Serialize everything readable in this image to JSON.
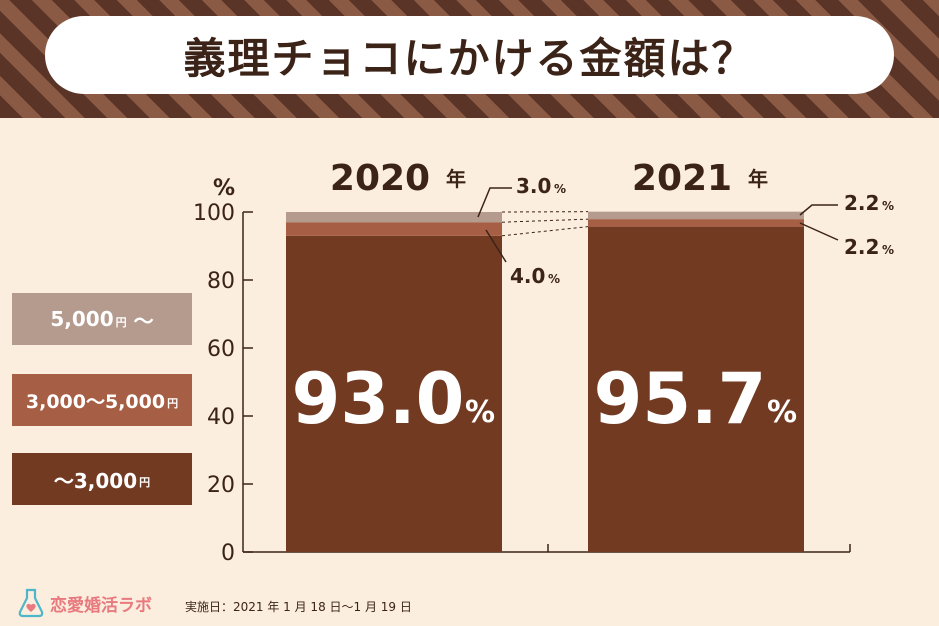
{
  "title": "義理チョコにかける金額は？",
  "legend": [
    {
      "label": "5,000",
      "unit": "円",
      "suffix": " 〜",
      "color": "#b59a8e"
    },
    {
      "label": "3,000〜5,000",
      "unit": "円",
      "suffix": "",
      "color": "#a65e44"
    },
    {
      "label": "〜3,000",
      "unit": "円",
      "suffix": "",
      "color": "#733a22"
    }
  ],
  "chart_data": {
    "type": "bar",
    "stacked": true,
    "ylabel": "%",
    "ylim": [
      0,
      100
    ],
    "yticks": [
      0,
      20,
      40,
      60,
      80,
      100
    ],
    "categories": [
      "2020",
      "2021"
    ],
    "category_suffix": "年",
    "series": [
      {
        "name": "〜3,000円",
        "values": [
          93.0,
          95.7
        ],
        "color": "#733a22"
      },
      {
        "name": "3,000〜5,000円",
        "values": [
          4.0,
          2.2
        ],
        "color": "#a65e44"
      },
      {
        "name": "5,000円〜",
        "values": [
          3.0,
          2.2
        ],
        "color": "#b59a8e"
      }
    ],
    "big_labels": [
      "93.0",
      "95.7"
    ],
    "callouts": [
      "3.0",
      "4.0",
      "2.2",
      "2.2"
    ],
    "percent_sign": "%",
    "grid": false,
    "legend_position": "left"
  },
  "footer": {
    "logo_text": "恋愛婚活ラボ",
    "note": "実施日：2021 年 1 月 18 日〜1 月 19 日"
  }
}
